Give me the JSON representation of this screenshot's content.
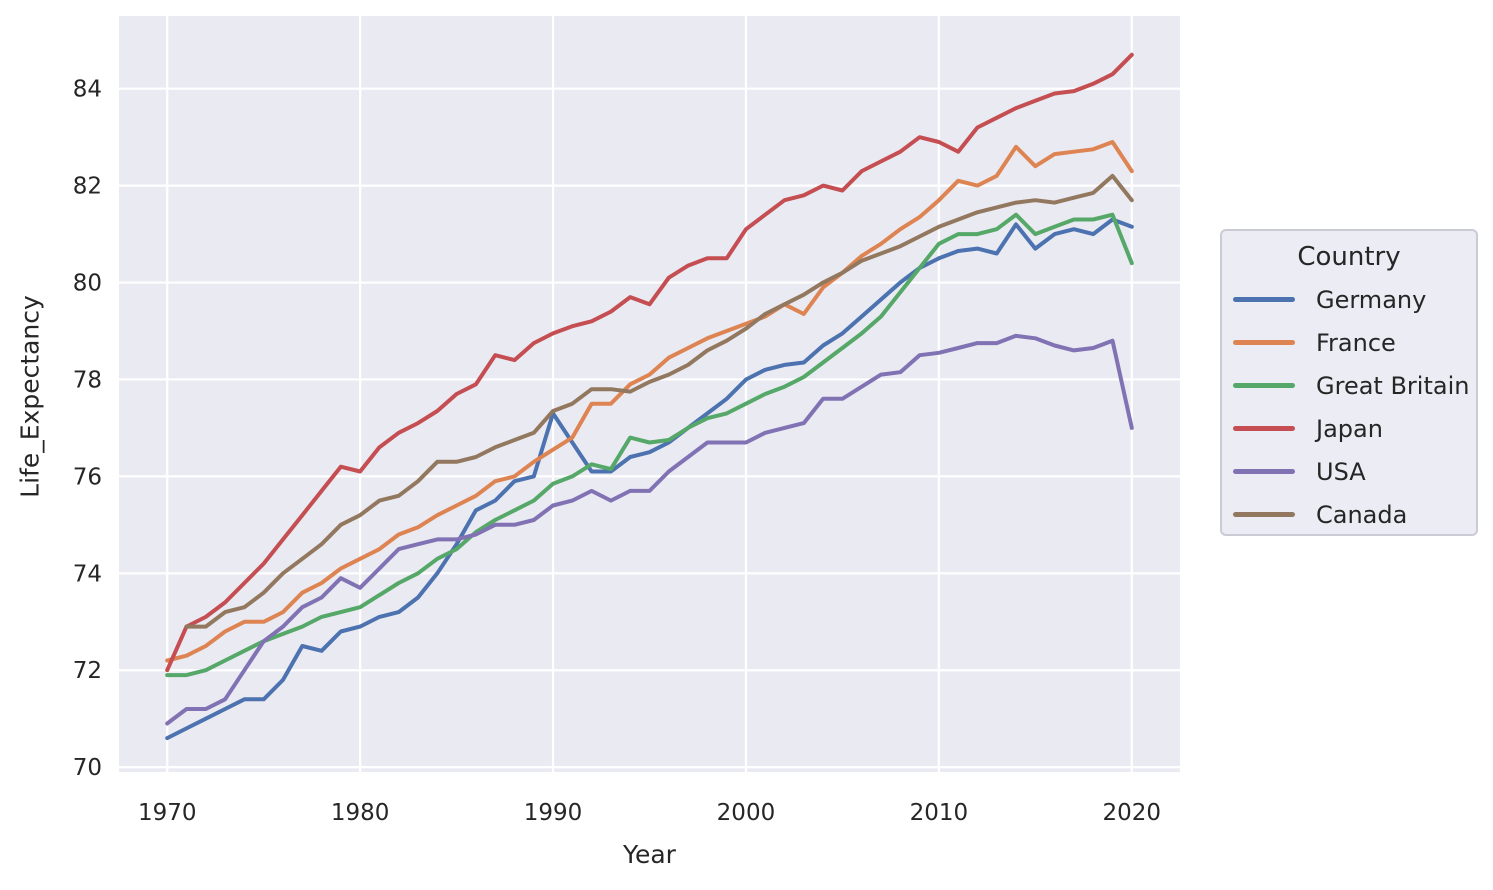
{
  "chart_data": {
    "type": "line",
    "title": "",
    "xlabel": "Year",
    "ylabel": "Life_Expectancy",
    "xlim": [
      1967.5,
      2022.5
    ],
    "ylim": [
      69.9,
      85.5
    ],
    "x_ticks": [
      1970,
      1980,
      1990,
      2000,
      2010,
      2020
    ],
    "y_ticks": [
      70,
      72,
      74,
      76,
      78,
      80,
      82,
      84
    ],
    "grid": true,
    "style": "seaborn-darkgrid",
    "plot_background": "#eaeaf2",
    "gridline_color": "#ffffff",
    "legend": {
      "title": "Country",
      "position": "right-outside"
    },
    "x": [
      1970,
      1971,
      1972,
      1973,
      1974,
      1975,
      1976,
      1977,
      1978,
      1979,
      1980,
      1981,
      1982,
      1983,
      1984,
      1985,
      1986,
      1987,
      1988,
      1989,
      1990,
      1991,
      1992,
      1993,
      1994,
      1995,
      1996,
      1997,
      1998,
      1999,
      2000,
      2001,
      2002,
      2003,
      2004,
      2005,
      2006,
      2007,
      2008,
      2009,
      2010,
      2011,
      2012,
      2013,
      2014,
      2015,
      2016,
      2017,
      2018,
      2019,
      2020
    ],
    "series": [
      {
        "name": "Germany",
        "color": "#4c72b0",
        "values": [
          70.6,
          70.8,
          71.0,
          71.2,
          71.4,
          71.4,
          71.8,
          72.5,
          72.4,
          72.8,
          72.9,
          73.1,
          73.2,
          73.5,
          74.0,
          74.6,
          75.3,
          75.5,
          75.9,
          76.0,
          77.3,
          76.7,
          76.1,
          76.1,
          76.4,
          76.5,
          76.7,
          77.0,
          77.3,
          77.6,
          78.0,
          78.2,
          78.3,
          78.35,
          78.7,
          78.95,
          79.3,
          79.65,
          80.0,
          80.3,
          80.5,
          80.65,
          80.7,
          80.6,
          81.2,
          80.7,
          81.0,
          81.1,
          81.0,
          81.3,
          81.15
        ]
      },
      {
        "name": "France",
        "color": "#dd8452",
        "values": [
          72.2,
          72.3,
          72.5,
          72.8,
          73.0,
          73.0,
          73.2,
          73.6,
          73.8,
          74.1,
          74.3,
          74.5,
          74.8,
          74.95,
          75.2,
          75.4,
          75.6,
          75.9,
          76.0,
          76.3,
          76.55,
          76.8,
          77.5,
          77.5,
          77.9,
          78.1,
          78.45,
          78.65,
          78.85,
          79.0,
          79.15,
          79.3,
          79.55,
          79.35,
          79.9,
          80.2,
          80.55,
          80.8,
          81.1,
          81.35,
          81.7,
          82.1,
          82.0,
          82.2,
          82.8,
          82.4,
          82.65,
          82.7,
          82.75,
          82.9,
          82.3
        ]
      },
      {
        "name": "Great Britain",
        "color": "#55a868",
        "values": [
          71.9,
          71.9,
          72.0,
          72.2,
          72.4,
          72.6,
          72.75,
          72.9,
          73.1,
          73.2,
          73.3,
          73.55,
          73.8,
          74.0,
          74.3,
          74.5,
          74.85,
          75.1,
          75.3,
          75.5,
          75.85,
          76.0,
          76.25,
          76.15,
          76.8,
          76.7,
          76.75,
          77.0,
          77.2,
          77.3,
          77.5,
          77.7,
          77.85,
          78.05,
          78.35,
          78.65,
          78.95,
          79.3,
          79.8,
          80.3,
          80.8,
          81.0,
          81.0,
          81.1,
          81.4,
          81.0,
          81.15,
          81.3,
          81.3,
          81.4,
          80.4
        ]
      },
      {
        "name": "Japan",
        "color": "#c44e52",
        "values": [
          72.0,
          72.9,
          73.1,
          73.4,
          73.8,
          74.2,
          74.7,
          75.2,
          75.7,
          76.2,
          76.1,
          76.6,
          76.9,
          77.1,
          77.35,
          77.7,
          77.9,
          78.5,
          78.4,
          78.75,
          78.95,
          79.1,
          79.2,
          79.4,
          79.7,
          79.55,
          80.1,
          80.35,
          80.5,
          80.5,
          81.1,
          81.4,
          81.7,
          81.8,
          82.0,
          81.9,
          82.3,
          82.5,
          82.7,
          83.0,
          82.9,
          82.7,
          83.2,
          83.4,
          83.6,
          83.75,
          83.9,
          83.95,
          84.1,
          84.3,
          84.7
        ]
      },
      {
        "name": "USA",
        "color": "#8172b3",
        "values": [
          70.9,
          71.2,
          71.2,
          71.4,
          72.0,
          72.6,
          72.9,
          73.3,
          73.5,
          73.9,
          73.7,
          74.1,
          74.5,
          74.6,
          74.7,
          74.7,
          74.8,
          75.0,
          75.0,
          75.1,
          75.4,
          75.5,
          75.7,
          75.5,
          75.7,
          75.7,
          76.1,
          76.4,
          76.7,
          76.7,
          76.7,
          76.9,
          77.0,
          77.1,
          77.6,
          77.6,
          77.85,
          78.1,
          78.15,
          78.5,
          78.55,
          78.65,
          78.75,
          78.75,
          78.9,
          78.85,
          78.7,
          78.6,
          78.65,
          78.8,
          77.0
        ]
      },
      {
        "name": "Canada",
        "color": "#937860",
        "values": [
          null,
          72.9,
          72.9,
          73.2,
          73.3,
          73.6,
          74.0,
          74.3,
          74.6,
          75.0,
          75.2,
          75.5,
          75.6,
          75.9,
          76.3,
          76.3,
          76.4,
          76.6,
          76.75,
          76.9,
          77.35,
          77.5,
          77.8,
          77.8,
          77.75,
          77.95,
          78.1,
          78.3,
          78.6,
          78.8,
          79.05,
          79.35,
          79.55,
          79.75,
          80.0,
          80.2,
          80.45,
          80.6,
          80.75,
          80.95,
          81.15,
          81.3,
          81.45,
          81.55,
          81.65,
          81.7,
          81.65,
          81.75,
          81.85,
          82.2,
          81.7
        ]
      }
    ]
  }
}
